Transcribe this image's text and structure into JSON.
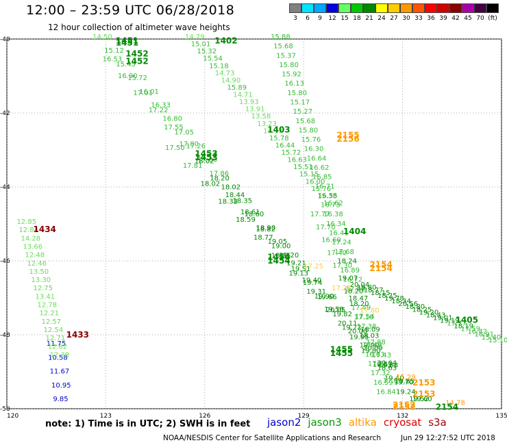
{
  "header": {
    "title": "12:00 – 23:59 UTC 06/28/2018",
    "subtitle": "12 hour collection of altimeter wave heights"
  },
  "color_legend": {
    "unit_label": "(ft)",
    "levels": [
      {
        "label": "3",
        "color": "#808080"
      },
      {
        "label": "6",
        "color": "#00e5ff"
      },
      {
        "label": "9",
        "color": "#00a8ff"
      },
      {
        "label": "12",
        "color": "#0000e0"
      },
      {
        "label": "15",
        "color": "#66ff66"
      },
      {
        "label": "18",
        "color": "#00c800"
      },
      {
        "label": "21",
        "color": "#008800"
      },
      {
        "label": "24",
        "color": "#ffff00"
      },
      {
        "label": "27",
        "color": "#ffcc00"
      },
      {
        "label": "30",
        "color": "#ff9900"
      },
      {
        "label": "33",
        "color": "#ff5500"
      },
      {
        "label": "36",
        "color": "#ff0000"
      },
      {
        "label": "39",
        "color": "#cc0000"
      },
      {
        "label": "42",
        "color": "#880000"
      },
      {
        "label": "45",
        "color": "#aa00aa"
      },
      {
        "label": "70",
        "color": "#440044"
      },
      {
        "label": "(ft)",
        "color": "#000000"
      }
    ]
  },
  "chart_data": {
    "type": "scatter",
    "title": "12:00 – 23:59 UTC 06/28/2018",
    "subtitle": "12 hour collection of altimeter wave heights",
    "xlabel": "",
    "ylabel": "",
    "xlim": [
      120,
      135
    ],
    "ylim": [
      -50,
      -40
    ],
    "x_ticks": [
      "120",
      "123",
      "126",
      "129",
      "132",
      "135"
    ],
    "y_ticks": [
      "-40",
      "-42",
      "-44",
      "-46",
      "-48",
      "-50"
    ],
    "grid": true,
    "tracks": [
      {
        "satellite": "jason3",
        "pass": "1451",
        "color": "#66dd55",
        "start": [
          122.6,
          -40.0
        ],
        "end": [
          131.8,
          -49.6
        ],
        "values": [
          14.5,
          15.12,
          15.45,
          15.72,
          16.01,
          16.33,
          16.8,
          17.05,
          17.26,
          17.6,
          17.86,
          18.02,
          18.35,
          18.6,
          18.9,
          19.05,
          19.2,
          19.51,
          19.74,
          19.9,
          20.05,
          20.11,
          19.95,
          19.8,
          19.61,
          19.4,
          19.24
        ]
      },
      {
        "satellite": "jason3",
        "pass": "1452",
        "color": "#66dd55",
        "start": [
          122.9,
          -40.6
        ],
        "end": [
          132.2,
          -49.8
        ],
        "values": [
          16.53,
          16.9,
          17.01,
          17.22,
          17.55,
          17.8,
          18.02,
          18.2,
          18.44,
          18.61,
          18.82,
          19.0,
          19.21,
          19.4,
          19.66,
          19.82,
          20.0,
          20.09,
          19.88,
          19.7,
          19.52
        ]
      },
      {
        "satellite": "jason3",
        "pass": "1453",
        "color": "#66dd55",
        "start": [
          124.8,
          -43.0
        ],
        "end": [
          132.3,
          -49.8
        ],
        "values": [
          17.5,
          17.81,
          18.02,
          18.33,
          18.59,
          18.77,
          18.95,
          19.13,
          19.31,
          19.58,
          19.72,
          19.9,
          20.04,
          19.85,
          19.6
        ]
      },
      {
        "satellite": "jason3",
        "pass": "1402",
        "color": "#66dd55",
        "start": [
          125.4,
          -40.0
        ],
        "end": [
          129.6,
          -44.5
        ],
        "values": [
          14.79,
          15.01,
          15.32,
          15.54,
          15.18,
          14.73,
          14.9,
          15.89,
          14.71,
          13.93,
          13.91,
          13.58,
          13.23,
          14.33,
          15.78,
          16.44,
          15.72,
          16.63,
          15.51,
          15.15,
          16.0,
          15.76,
          15.38,
          16.62
        ]
      },
      {
        "satellite": "jason3",
        "pass": "1403",
        "color": "#66dd55",
        "start": [
          128.0,
          -40.0
        ],
        "end": [
          131.2,
          -49.6
        ],
        "values": [
          15.88,
          15.68,
          15.37,
          15.8,
          15.92,
          16.13,
          15.8,
          15.17,
          15.27,
          15.68,
          15.8,
          15.76,
          16.3,
          16.64,
          16.62,
          16.85,
          16.71,
          16.55,
          16.73,
          16.38,
          16.34,
          16.41,
          17.24,
          17.68,
          18.24,
          16.89,
          16.72,
          17.08,
          18.47,
          17.49,
          17.1,
          17.38,
          18.03,
          17.49,
          16.63,
          17.29,
          17.32,
          16.59,
          16.84
        ]
      },
      {
        "satellite": "jason3",
        "pass": "1404",
        "color": "#66dd55",
        "start": [
          129.2,
          -44.8
        ],
        "end": [
          131.4,
          -49.3
        ],
        "values": [
          17.77,
          17.7,
          16.6,
          17.4,
          17.3,
          19.07,
          18.2,
          18.2,
          17.54,
          18.09,
          17.88,
          17.43,
          18.63,
          17.89
        ]
      },
      {
        "satellite": "jason3",
        "pass": "1405",
        "color": "#66dd55",
        "start": [
          130.4,
          -46.7
        ],
        "end": [
          134.6,
          -48.2
        ],
        "values": [
          20.04,
          19.8,
          18.77,
          18.15,
          18.25,
          19.78,
          18.34,
          20.56,
          18.8,
          18.25,
          19.2,
          18.43,
          19.01,
          19.19,
          17.77,
          18.19,
          17.59,
          16.42,
          16.91,
          15.4,
          15.1
        ]
      },
      {
        "satellite": "jason2",
        "pass": "1433",
        "color": "#0000cc",
        "start": [
          121.2,
          -48.3
        ],
        "end": [
          121.4,
          -49.8
        ],
        "values": [
          11.75,
          10.58,
          11.67,
          10.95,
          9.85
        ]
      },
      {
        "satellite": "jason3",
        "pass": "1434",
        "color": "#66dd55",
        "start": [
          120.3,
          -45.0
        ],
        "end": [
          121.3,
          -48.6
        ],
        "values": [
          12.85,
          12.84,
          14.28,
          13.66,
          12.48,
          12.46,
          13.5,
          13.3,
          12.75,
          13.41,
          12.78,
          12.21,
          12.57,
          12.54,
          12.71,
          12.62,
          12.38
        ]
      },
      {
        "satellite": "altika",
        "pass": "2155",
        "color": "#ff9900",
        "start": [
          130.0,
          -42.6
        ],
        "end": [
          130.0,
          -42.6
        ],
        "values": []
      },
      {
        "satellite": "altika",
        "pass": "2154",
        "color": "#ffcc33",
        "start": [
          129.0,
          -46.2
        ],
        "end": [
          130.7,
          -47.4
        ],
        "values": [
          17.25,
          17.22,
          17.8
        ]
      },
      {
        "satellite": "altika",
        "pass": "2153",
        "color": "#ff9900",
        "start": [
          131.8,
          -49.2
        ],
        "end": [
          133.3,
          -49.9
        ],
        "values": [
          15.29,
          14.78
        ]
      }
    ],
    "pass_labels": [
      {
        "text": "1451",
        "lon": 123.3,
        "lat": -40.05,
        "color": "#008800"
      },
      {
        "text": "1451",
        "lon": 123.3,
        "lat": -40.1,
        "color": "#008800"
      },
      {
        "text": "1452",
        "lon": 123.6,
        "lat": -40.4,
        "color": "#008800"
      },
      {
        "text": "1452",
        "lon": 123.6,
        "lat": -40.6,
        "color": "#008800"
      },
      {
        "text": "1402",
        "lon": 126.3,
        "lat": -40.05,
        "color": "#008800"
      },
      {
        "text": "1403",
        "lon": 127.9,
        "lat": -42.45,
        "color": "#008800"
      },
      {
        "text": "2155",
        "lon": 130.0,
        "lat": -42.6,
        "color": "#ff9900"
      },
      {
        "text": "2156",
        "lon": 130.0,
        "lat": -42.7,
        "color": "#ff9900"
      },
      {
        "text": "1453",
        "lon": 125.7,
        "lat": -43.1,
        "color": "#008800"
      },
      {
        "text": "1453",
        "lon": 125.7,
        "lat": -43.2,
        "color": "#008800"
      },
      {
        "text": "1404",
        "lon": 130.2,
        "lat": -45.2,
        "color": "#008800"
      },
      {
        "text": "1434",
        "lon": 120.8,
        "lat": -45.15,
        "color": "#880000"
      },
      {
        "text": "1454",
        "lon": 127.9,
        "lat": -45.9,
        "color": "#008800"
      },
      {
        "text": "1454",
        "lon": 127.9,
        "lat": -46.0,
        "color": "#008800"
      },
      {
        "text": "2154",
        "lon": 131.0,
        "lat": -46.1,
        "color": "#ff9900"
      },
      {
        "text": "2154",
        "lon": 131.0,
        "lat": -46.2,
        "color": "#ff9900"
      },
      {
        "text": "1433",
        "lon": 121.8,
        "lat": -48.0,
        "color": "#880000"
      },
      {
        "text": "1405",
        "lon": 133.6,
        "lat": -47.6,
        "color": "#008800"
      },
      {
        "text": "1455",
        "lon": 129.8,
        "lat": -48.4,
        "color": "#008800"
      },
      {
        "text": "1455",
        "lon": 129.8,
        "lat": -48.5,
        "color": "#008800"
      },
      {
        "text": "2153",
        "lon": 132.3,
        "lat": -49.3,
        "color": "#ff9900"
      },
      {
        "text": "2153",
        "lon": 132.3,
        "lat": -49.6,
        "color": "#ff9900"
      },
      {
        "text": "2152",
        "lon": 131.7,
        "lat": -49.9,
        "color": "#ff9900"
      },
      {
        "text": "2152",
        "lon": 131.7,
        "lat": -49.95,
        "color": "#ff9900"
      },
      {
        "text": "2154",
        "lon": 133.0,
        "lat": -49.95,
        "color": "#008800"
      }
    ]
  },
  "notes": {
    "text": "note:  1) Time is in UTC;  2) SWH is in feet"
  },
  "satellites": [
    {
      "name": "jason2",
      "color": "#0000cc"
    },
    {
      "name": "jason3",
      "color": "#009900"
    },
    {
      "name": "altika",
      "color": "#ff9900"
    },
    {
      "name": "cryosat",
      "color": "#dd0000"
    },
    {
      "name": "s3a",
      "color": "#990000"
    }
  ],
  "footer": {
    "credit": "NOAA/NESDIS Center for Satellite Applications and Research",
    "timestamp": "Jun 29 12:27:52 UTC 2018"
  }
}
